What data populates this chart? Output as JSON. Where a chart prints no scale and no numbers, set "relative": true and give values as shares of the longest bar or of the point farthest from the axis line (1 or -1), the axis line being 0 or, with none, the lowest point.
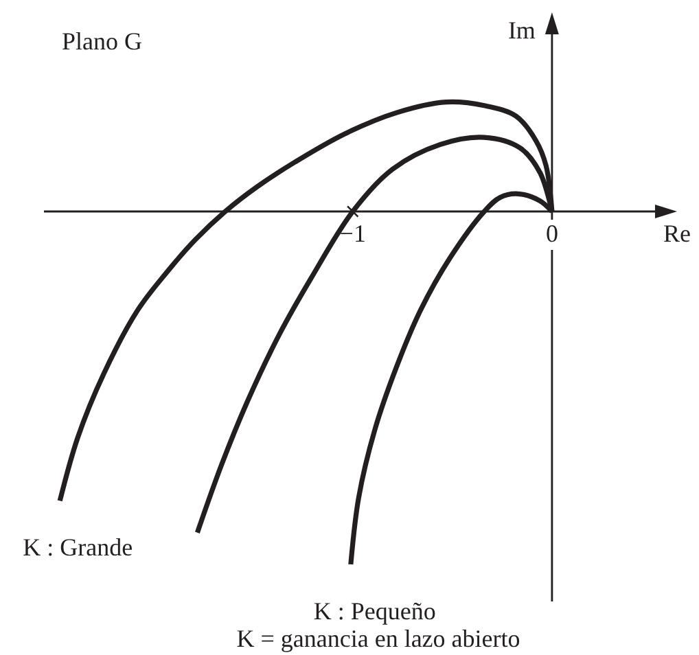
{
  "chart_data": {
    "type": "line",
    "title": "Plano G",
    "xlabel": "Re",
    "ylabel": "Im",
    "annotations": [
      "K = ganancia en lazo abierto"
    ],
    "relative": true,
    "xlim": [
      -2.55,
      0.6
    ],
    "xticks": [
      {
        "value": -1,
        "label": "−1"
      },
      0
    ],
    "series": [
      {
        "name": "K : Grande",
        "color": "#231f20",
        "x": [
          -2.47,
          -2.38,
          -2.25,
          -2.08,
          -1.93,
          -1.79,
          -1.64,
          -1.48,
          -1.29,
          -1.04,
          -0.78,
          -0.53,
          -0.34,
          -0.18,
          -0.08,
          -0.03,
          0
        ],
        "values": [
          -0.82,
          -0.64,
          -0.46,
          -0.28,
          -0.17,
          -0.08,
          0,
          0.07,
          0.14,
          0.22,
          0.28,
          0.31,
          0.3,
          0.27,
          0.2,
          0.13,
          0
        ]
      },
      {
        "color": "#231f20",
        "x": [
          -1.78,
          -1.66,
          -1.53,
          -1.37,
          -1.21,
          -1.0,
          -0.8,
          -0.56,
          -0.34,
          -0.16,
          -0.06,
          0
        ],
        "values": [
          -0.91,
          -0.72,
          -0.54,
          -0.35,
          -0.19,
          0,
          0.12,
          0.19,
          0.21,
          0.18,
          0.11,
          0
        ]
      },
      {
        "name": "K : Pequeño",
        "color": "#231f20",
        "x": [
          -1.01,
          -0.97,
          -0.89,
          -0.78,
          -0.66,
          -0.51,
          -0.34,
          -0.26,
          -0.17,
          -0.06,
          0
        ],
        "values": [
          -1,
          -0.81,
          -0.62,
          -0.44,
          -0.28,
          -0.13,
          0,
          0.04,
          0.05,
          0.03,
          0
        ]
      },
      {
        "type": "scatter",
        "marker": "cross",
        "color": "#231f20",
        "x": [
          -1
        ],
        "values": [
          0
        ]
      }
    ]
  }
}
